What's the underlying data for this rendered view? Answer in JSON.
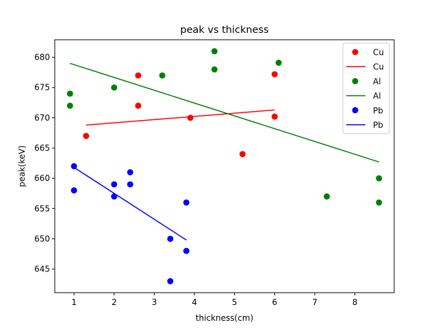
{
  "chart_data": {
    "type": "scatter",
    "title": "peak vs thickness",
    "xlabel": "thickness(cm)",
    "ylabel": "peak(keV)",
    "xlim": [
      0.52,
      8.98
    ],
    "ylim": [
      641.1,
      682.9
    ],
    "xticks": [
      1,
      2,
      3,
      4,
      5,
      6,
      7,
      8
    ],
    "yticks": [
      645,
      650,
      655,
      660,
      665,
      670,
      675,
      680
    ],
    "grid": false,
    "legend_position": "top-right",
    "legend": [
      {
        "label": "Cu",
        "kind": "marker",
        "color": "#ff0000"
      },
      {
        "label": "Cu",
        "kind": "line",
        "color": "#ff0000"
      },
      {
        "label": "Al",
        "kind": "marker",
        "color": "#008000"
      },
      {
        "label": "Al",
        "kind": "line",
        "color": "#008000"
      },
      {
        "label": "Pb",
        "kind": "marker",
        "color": "#0000ff"
      },
      {
        "label": "Pb",
        "kind": "line",
        "color": "#0000ff"
      }
    ],
    "series": [
      {
        "name": "Cu",
        "kind": "scatter",
        "color": "#ff0000",
        "points": [
          [
            1.3,
            667
          ],
          [
            2.6,
            677
          ],
          [
            2.6,
            672
          ],
          [
            3.9,
            670
          ],
          [
            5.2,
            664
          ],
          [
            6.0,
            677.2
          ],
          [
            6.0,
            670.2
          ]
        ]
      },
      {
        "name": "Cu",
        "kind": "line",
        "color": "#ff0000",
        "points": [
          [
            1.3,
            668.8
          ],
          [
            6.0,
            671.3
          ]
        ]
      },
      {
        "name": "Al",
        "kind": "scatter",
        "color": "#008000",
        "points": [
          [
            0.9,
            674
          ],
          [
            0.9,
            672
          ],
          [
            2.0,
            675
          ],
          [
            3.2,
            677
          ],
          [
            4.5,
            681
          ],
          [
            4.5,
            678
          ],
          [
            6.1,
            679.1
          ],
          [
            7.3,
            657
          ],
          [
            8.6,
            660
          ],
          [
            8.6,
            656
          ]
        ]
      },
      {
        "name": "Al",
        "kind": "line",
        "color": "#008000",
        "points": [
          [
            0.9,
            679
          ],
          [
            8.6,
            662.7
          ]
        ]
      },
      {
        "name": "Pb",
        "kind": "scatter",
        "color": "#0000ff",
        "points": [
          [
            1.0,
            662
          ],
          [
            1.0,
            658
          ],
          [
            2.0,
            659
          ],
          [
            2.0,
            657
          ],
          [
            2.4,
            661
          ],
          [
            2.4,
            659
          ],
          [
            3.4,
            650
          ],
          [
            3.4,
            643
          ],
          [
            3.8,
            656
          ],
          [
            3.8,
            648
          ]
        ]
      },
      {
        "name": "Pb",
        "kind": "line",
        "color": "#0000ff",
        "points": [
          [
            1.0,
            661.8
          ],
          [
            3.8,
            649.8
          ]
        ]
      }
    ]
  }
}
